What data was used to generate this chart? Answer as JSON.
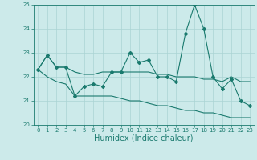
{
  "xlabel": "Humidex (Indice chaleur)",
  "x": [
    0,
    1,
    2,
    3,
    4,
    5,
    6,
    7,
    8,
    9,
    10,
    11,
    12,
    13,
    14,
    15,
    16,
    17,
    18,
    19,
    20,
    21,
    22,
    23
  ],
  "main_line": [
    22.3,
    22.9,
    22.4,
    22.4,
    21.2,
    21.6,
    21.7,
    21.6,
    22.2,
    22.2,
    23.0,
    22.6,
    22.7,
    22.0,
    22.0,
    21.8,
    23.8,
    25.0,
    24.0,
    22.0,
    21.5,
    21.9,
    21.0,
    20.8
  ],
  "upper_line": [
    22.3,
    22.9,
    22.4,
    22.4,
    22.2,
    22.1,
    22.1,
    22.2,
    22.2,
    22.2,
    22.2,
    22.2,
    22.2,
    22.1,
    22.1,
    22.0,
    22.0,
    22.0,
    21.9,
    21.9,
    21.8,
    22.0,
    21.8,
    21.8
  ],
  "lower_line": [
    22.3,
    22.0,
    21.8,
    21.7,
    21.2,
    21.2,
    21.2,
    21.2,
    21.2,
    21.1,
    21.0,
    21.0,
    20.9,
    20.8,
    20.8,
    20.7,
    20.6,
    20.6,
    20.5,
    20.5,
    20.4,
    20.3,
    20.3,
    20.3
  ],
  "color": "#1a7a6e",
  "bg_color": "#cceaea",
  "grid_color": "#aad4d4",
  "ylim": [
    20,
    25
  ],
  "xlim": [
    -0.5,
    23.5
  ],
  "yticks": [
    20,
    21,
    22,
    23,
    24,
    25
  ],
  "xticks": [
    0,
    1,
    2,
    3,
    4,
    5,
    6,
    7,
    8,
    9,
    10,
    11,
    12,
    13,
    14,
    15,
    16,
    17,
    18,
    19,
    20,
    21,
    22,
    23
  ],
  "xlabel_fontsize": 7,
  "tick_fontsize": 5,
  "linewidth": 0.8,
  "marker_size": 2.0
}
